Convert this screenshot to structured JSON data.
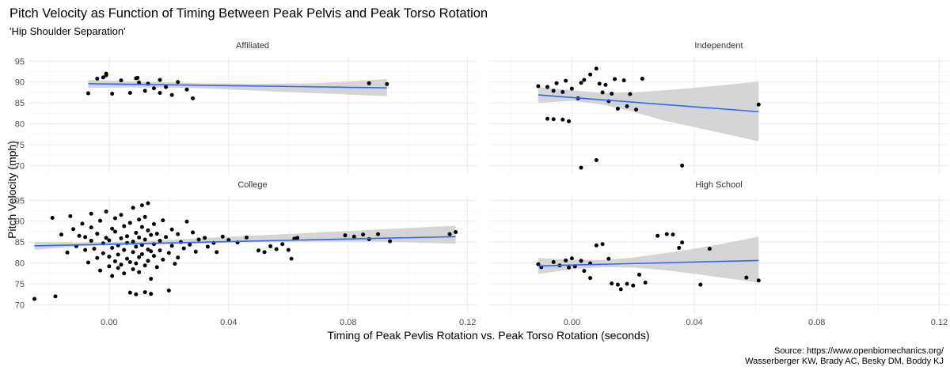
{
  "chart_data": {
    "type": "scatter",
    "title": "Pitch Velocity as Function of Timing Between Peak Pelvis and Peak Torso Rotation",
    "subtitle": "'Hip Shoulder Separation'",
    "xlabel": "Timing of Peak Pevlis Rotation vs. Peak Torso Rotation (seconds)",
    "ylabel": "Pitch Velocity (mph)",
    "caption_lines": [
      "Source: https://www.openbiomechanics.org/",
      "Wasserberger KW, Brady AC, Besky DM, Boddy KJ"
    ],
    "xlim": [
      -0.027,
      0.123
    ],
    "ylim": [
      68,
      96
    ],
    "x_ticks": [
      0.0,
      0.04,
      0.08,
      0.12
    ],
    "x_tick_labels": [
      "0.00",
      "0.04",
      "0.08",
      "0.12"
    ],
    "y_ticks": [
      70,
      75,
      80,
      85,
      90,
      95
    ],
    "y_tick_labels": [
      "70",
      "75",
      "80",
      "85",
      "90",
      "95"
    ],
    "fit": "linear with confidence band",
    "colors": {
      "points": "#000000",
      "fit_line": "#3366ff",
      "band": "#d3d3d3",
      "grid": "#ebebeb"
    },
    "facets": [
      {
        "name": "Affiliated",
        "points": [
          [
            -0.007,
            87.3
          ],
          [
            -0.004,
            90.8
          ],
          [
            -0.002,
            91.1
          ],
          [
            -0.001,
            91.6
          ],
          [
            -0.001,
            92.0
          ],
          [
            0.001,
            87.2
          ],
          [
            0.004,
            90.4
          ],
          [
            0.007,
            87.4
          ],
          [
            0.009,
            90.9
          ],
          [
            0.0095,
            91.0
          ],
          [
            0.01,
            89.9
          ],
          [
            0.012,
            87.9
          ],
          [
            0.013,
            89.6
          ],
          [
            0.015,
            88.5
          ],
          [
            0.017,
            90.5
          ],
          [
            0.017,
            87.4
          ],
          [
            0.019,
            88.8
          ],
          [
            0.021,
            86.9
          ],
          [
            0.023,
            90.0
          ],
          [
            0.026,
            88.2
          ],
          [
            0.028,
            86.1
          ],
          [
            0.087,
            89.7
          ],
          [
            0.093,
            89.5
          ]
        ],
        "fit_line": [
          [
            -0.007,
            89.6
          ],
          [
            0.093,
            88.6
          ]
        ],
        "band_upper": [
          [
            -0.007,
            90.5
          ],
          [
            0.01,
            90.1
          ],
          [
            0.03,
            89.7
          ],
          [
            0.05,
            89.6
          ],
          [
            0.07,
            89.7
          ],
          [
            0.093,
            90.7
          ]
        ],
        "band_lower": [
          [
            -0.007,
            88.6
          ],
          [
            0.01,
            88.7
          ],
          [
            0.03,
            88.5
          ],
          [
            0.05,
            87.9
          ],
          [
            0.07,
            87.3
          ],
          [
            0.093,
            86.6
          ]
        ]
      },
      {
        "name": "Independent",
        "points": [
          [
            -0.011,
            89.0
          ],
          [
            -0.008,
            88.8
          ],
          [
            -0.006,
            87.9
          ],
          [
            -0.005,
            89.7
          ],
          [
            -0.003,
            87.6
          ],
          [
            -0.002,
            90.3
          ],
          [
            0.0,
            88.4
          ],
          [
            0.002,
            86.1
          ],
          [
            0.003,
            89.8
          ],
          [
            0.004,
            90.5
          ],
          [
            0.006,
            91.8
          ],
          [
            0.008,
            93.2
          ],
          [
            0.009,
            89.6
          ],
          [
            0.01,
            87.5
          ],
          [
            0.011,
            89.3
          ],
          [
            0.012,
            85.4
          ],
          [
            0.013,
            87.2
          ],
          [
            0.014,
            90.7
          ],
          [
            0.015,
            83.6
          ],
          [
            0.017,
            90.4
          ],
          [
            0.018,
            84.2
          ],
          [
            0.019,
            87.1
          ],
          [
            0.021,
            83.4
          ],
          [
            0.023,
            90.8
          ],
          [
            -0.008,
            81.2
          ],
          [
            -0.006,
            81.1
          ],
          [
            -0.003,
            81.0
          ],
          [
            -0.001,
            80.6
          ],
          [
            0.003,
            69.5
          ],
          [
            0.008,
            71.3
          ],
          [
            0.036,
            70.0
          ],
          [
            0.061,
            84.6
          ]
        ],
        "fit_line": [
          [
            -0.011,
            86.9
          ],
          [
            0.061,
            82.9
          ]
        ],
        "band_upper": [
          [
            -0.011,
            88.8
          ],
          [
            0.0,
            88.0
          ],
          [
            0.01,
            87.4
          ],
          [
            0.02,
            87.5
          ],
          [
            0.03,
            88.0
          ],
          [
            0.04,
            88.6
          ],
          [
            0.05,
            89.3
          ],
          [
            0.061,
            90.1
          ]
        ],
        "band_lower": [
          [
            -0.011,
            85.0
          ],
          [
            0.0,
            85.5
          ],
          [
            0.01,
            84.6
          ],
          [
            0.02,
            82.9
          ],
          [
            0.03,
            80.8
          ],
          [
            0.04,
            79.2
          ],
          [
            0.05,
            77.6
          ],
          [
            0.061,
            75.8
          ]
        ]
      },
      {
        "name": "College",
        "points": [
          [
            -0.025,
            71.4
          ],
          [
            -0.018,
            72.0
          ],
          [
            -0.019,
            90.8
          ],
          [
            -0.016,
            86.8
          ],
          [
            -0.014,
            82.5
          ],
          [
            -0.013,
            91.2
          ],
          [
            -0.012,
            88.1
          ],
          [
            -0.011,
            84.0
          ],
          [
            -0.01,
            86.5
          ],
          [
            -0.009,
            89.4
          ],
          [
            -0.008,
            83.1
          ],
          [
            -0.008,
            86.2
          ],
          [
            -0.007,
            80.1
          ],
          [
            -0.006,
            91.8
          ],
          [
            -0.006,
            88.5
          ],
          [
            -0.006,
            85.3
          ],
          [
            -0.005,
            83.4
          ],
          [
            -0.004,
            81.2
          ],
          [
            -0.004,
            87.0
          ],
          [
            -0.003,
            90.1
          ],
          [
            -0.003,
            78.2
          ],
          [
            -0.002,
            84.7
          ],
          [
            -0.002,
            82.3
          ],
          [
            -0.001,
            92.3
          ],
          [
            -0.001,
            86.0
          ],
          [
            0.0,
            81.5
          ],
          [
            0.0,
            79.2
          ],
          [
            0.0,
            85.4
          ],
          [
            0.001,
            88.2
          ],
          [
            0.001,
            76.9
          ],
          [
            0.001,
            83.6
          ],
          [
            0.002,
            90.7
          ],
          [
            0.002,
            80.4
          ],
          [
            0.002,
            87.5
          ],
          [
            0.003,
            84.2
          ],
          [
            0.003,
            78.8
          ],
          [
            0.003,
            82.0
          ],
          [
            0.004,
            91.5
          ],
          [
            0.004,
            85.9
          ],
          [
            0.004,
            79.6
          ],
          [
            0.005,
            83.1
          ],
          [
            0.005,
            88.8
          ],
          [
            0.005,
            77.5
          ],
          [
            0.006,
            86.4
          ],
          [
            0.006,
            81.0
          ],
          [
            0.006,
            84.8
          ],
          [
            0.007,
            89.6
          ],
          [
            0.007,
            80.2
          ],
          [
            0.007,
            72.9
          ],
          [
            0.008,
            85.1
          ],
          [
            0.008,
            82.6
          ],
          [
            0.008,
            78.5
          ],
          [
            0.008,
            93.2
          ],
          [
            0.009,
            87.2
          ],
          [
            0.009,
            83.9
          ],
          [
            0.009,
            79.9
          ],
          [
            0.009,
            72.5
          ],
          [
            0.01,
            90.4
          ],
          [
            0.01,
            86.1
          ],
          [
            0.01,
            81.4
          ],
          [
            0.01,
            77.8
          ],
          [
            0.011,
            84.3
          ],
          [
            0.011,
            88.6
          ],
          [
            0.011,
            82.1
          ],
          [
            0.011,
            93.8
          ],
          [
            0.012,
            85.6
          ],
          [
            0.012,
            79.4
          ],
          [
            0.012,
            91.0
          ],
          [
            0.012,
            73.0
          ],
          [
            0.013,
            87.8
          ],
          [
            0.013,
            83.2
          ],
          [
            0.013,
            80.5
          ],
          [
            0.013,
            94.3
          ],
          [
            0.014,
            86.7
          ],
          [
            0.014,
            82.8
          ],
          [
            0.014,
            76.2
          ],
          [
            0.014,
            72.6
          ],
          [
            0.015,
            89.3
          ],
          [
            0.015,
            84.5
          ],
          [
            0.015,
            81.7
          ],
          [
            0.016,
            87.0
          ],
          [
            0.016,
            79.0
          ],
          [
            0.017,
            85.3
          ],
          [
            0.017,
            83.0
          ],
          [
            0.018,
            90.2
          ],
          [
            0.018,
            80.8
          ],
          [
            0.019,
            86.2
          ],
          [
            0.02,
            82.4
          ],
          [
            0.02,
            73.4
          ],
          [
            0.021,
            88.0
          ],
          [
            0.021,
            84.1
          ],
          [
            0.022,
            79.8
          ],
          [
            0.023,
            86.9
          ],
          [
            0.023,
            81.3
          ],
          [
            0.024,
            85.0
          ],
          [
            0.025,
            83.5
          ],
          [
            0.026,
            89.9
          ],
          [
            0.027,
            84.4
          ],
          [
            0.028,
            87.3
          ],
          [
            0.029,
            82.7
          ],
          [
            0.03,
            85.6
          ],
          [
            0.032,
            86.0
          ],
          [
            0.033,
            83.9
          ],
          [
            0.035,
            84.8
          ],
          [
            0.036,
            82.6
          ],
          [
            0.038,
            86.3
          ],
          [
            0.04,
            85.5
          ],
          [
            0.043,
            84.9
          ],
          [
            0.046,
            86.1
          ],
          [
            0.05,
            83.0
          ],
          [
            0.052,
            82.6
          ],
          [
            0.054,
            84.0
          ],
          [
            0.056,
            83.3
          ],
          [
            0.058,
            84.5
          ],
          [
            0.06,
            83.1
          ],
          [
            0.061,
            81.0
          ],
          [
            0.062,
            85.8
          ],
          [
            0.063,
            86.0
          ],
          [
            0.079,
            86.6
          ],
          [
            0.082,
            86.3
          ],
          [
            0.085,
            86.8
          ],
          [
            0.087,
            85.7
          ],
          [
            0.09,
            86.9
          ],
          [
            0.094,
            85.2
          ],
          [
            0.114,
            86.9
          ],
          [
            0.116,
            87.4
          ]
        ],
        "fit_line": [
          [
            -0.025,
            84.1
          ],
          [
            0.116,
            86.3
          ]
        ],
        "band_upper": [
          [
            -0.025,
            85.0
          ],
          [
            -0.01,
            84.9
          ],
          [
            0.01,
            85.2
          ],
          [
            0.03,
            85.9
          ],
          [
            0.05,
            86.6
          ],
          [
            0.07,
            87.3
          ],
          [
            0.09,
            88.0
          ],
          [
            0.116,
            88.9
          ]
        ],
        "band_lower": [
          [
            -0.025,
            83.1
          ],
          [
            -0.01,
            84.0
          ],
          [
            0.01,
            84.3
          ],
          [
            0.03,
            84.7
          ],
          [
            0.05,
            85.0
          ],
          [
            0.07,
            85.1
          ],
          [
            0.09,
            85.1
          ],
          [
            0.116,
            84.6
          ]
        ]
      },
      {
        "name": "High School",
        "points": [
          [
            -0.011,
            79.7
          ],
          [
            -0.01,
            79.0
          ],
          [
            -0.006,
            80.2
          ],
          [
            -0.004,
            79.4
          ],
          [
            -0.002,
            80.6
          ],
          [
            -0.001,
            78.9
          ],
          [
            0.0,
            81.1
          ],
          [
            0.001,
            79.2
          ],
          [
            0.003,
            80.5
          ],
          [
            0.004,
            78.1
          ],
          [
            0.006,
            79.9
          ],
          [
            0.008,
            84.2
          ],
          [
            0.01,
            84.5
          ],
          [
            0.013,
            75.1
          ],
          [
            0.015,
            74.8
          ],
          [
            0.016,
            73.7
          ],
          [
            0.018,
            75.0
          ],
          [
            0.02,
            74.6
          ],
          [
            0.022,
            77.2
          ],
          [
            0.024,
            75.3
          ],
          [
            0.006,
            76.4
          ],
          [
            0.012,
            81.0
          ],
          [
            0.028,
            86.5
          ],
          [
            0.031,
            86.9
          ],
          [
            0.033,
            86.8
          ],
          [
            0.035,
            83.6
          ],
          [
            0.036,
            84.9
          ],
          [
            0.042,
            74.8
          ],
          [
            0.045,
            83.4
          ],
          [
            0.057,
            76.5
          ],
          [
            0.061,
            75.8
          ]
        ],
        "fit_line": [
          [
            -0.011,
            79.3
          ],
          [
            0.061,
            80.6
          ]
        ],
        "band_upper": [
          [
            -0.011,
            81.2
          ],
          [
            0.0,
            80.8
          ],
          [
            0.01,
            80.7
          ],
          [
            0.02,
            81.3
          ],
          [
            0.03,
            82.3
          ],
          [
            0.04,
            83.4
          ],
          [
            0.05,
            84.7
          ],
          [
            0.061,
            86.3
          ]
        ],
        "band_lower": [
          [
            -0.011,
            77.4
          ],
          [
            0.0,
            78.5
          ],
          [
            0.01,
            79.0
          ],
          [
            0.02,
            78.9
          ],
          [
            0.03,
            78.3
          ],
          [
            0.04,
            77.4
          ],
          [
            0.05,
            76.4
          ],
          [
            0.061,
            75.3
          ]
        ]
      }
    ]
  }
}
